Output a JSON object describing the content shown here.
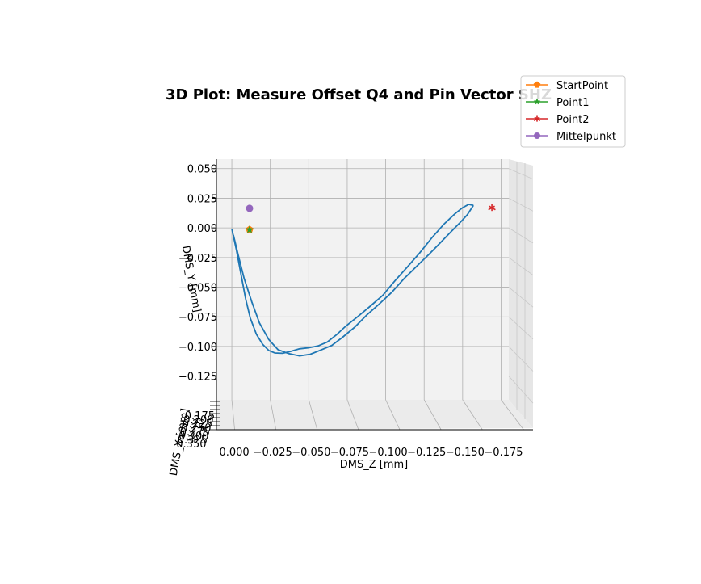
{
  "chart_data": {
    "type": "line",
    "title": "3D Plot: Measure Offset Q4 and Pin Vector SHZ",
    "xlabel": "DMS_Z [mm]",
    "ylabel": "DMS_Y [mm]",
    "zlabel": "DMS_X [mm]",
    "xlim": [
      0.01,
      -0.18
    ],
    "ylim": [
      -0.145,
      0.058
    ],
    "x_ticks": [
      "0.000",
      "−0.025",
      "−0.050",
      "−0.075",
      "−0.100",
      "−0.125",
      "−0.150",
      "−0.175"
    ],
    "x_tick_values": [
      0,
      -0.025,
      -0.05,
      -0.075,
      -0.1,
      -0.125,
      -0.15,
      -0.175
    ],
    "y_ticks": [
      "0.050",
      "0.025",
      "0.000",
      "−0.025",
      "−0.050",
      "−0.075",
      "−0.100",
      "−0.125"
    ],
    "y_tick_values": [
      0.05,
      0.025,
      0,
      -0.025,
      -0.05,
      -0.075,
      -0.1,
      -0.125
    ],
    "z_ticks": [
      "0.175",
      "0.200",
      "0.225",
      "0.250",
      "0.275",
      "0.300",
      "0.325",
      "0.350"
    ],
    "grid": true,
    "legend_position": "top-right",
    "series": [
      {
        "name": "",
        "color": "#1f77b4",
        "x": [
          0,
          -0.003,
          -0.006,
          -0.009,
          -0.012,
          -0.016,
          -0.02,
          -0.024,
          -0.028,
          -0.033,
          -0.038,
          -0.044,
          -0.05,
          -0.056,
          -0.062,
          -0.068,
          -0.074,
          -0.082,
          -0.09,
          -0.098,
          -0.106,
          -0.114,
          -0.122,
          -0.13,
          -0.138,
          -0.145,
          -0.15,
          -0.154,
          -0.157
        ],
        "y": [
          -0.001,
          -0.018,
          -0.038,
          -0.058,
          -0.074,
          -0.088,
          -0.097,
          -0.103,
          -0.106,
          -0.107,
          -0.106,
          -0.104,
          -0.103,
          -0.101,
          -0.097,
          -0.09,
          -0.082,
          -0.073,
          -0.064,
          -0.055,
          -0.043,
          -0.032,
          -0.021,
          -0.009,
          0.002,
          0.01,
          0.015,
          0.018,
          0.019
        ]
      },
      {
        "name": "",
        "color": "#1f77b4",
        "x": [
          -0.157,
          -0.153,
          -0.148,
          -0.142,
          -0.135,
          -0.128,
          -0.12,
          -0.112,
          -0.104,
          -0.096,
          -0.088,
          -0.08,
          -0.072,
          -0.065,
          -0.058,
          -0.051,
          -0.044,
          -0.037,
          -0.03,
          -0.024,
          -0.018,
          -0.013,
          -0.008,
          -0.004,
          -0.001
        ],
        "y": [
          0.019,
          0.013,
          0.006,
          -0.002,
          -0.012,
          -0.022,
          -0.033,
          -0.044,
          -0.056,
          -0.066,
          -0.075,
          -0.085,
          -0.093,
          -0.099,
          -0.102,
          -0.105,
          -0.106,
          -0.104,
          -0.101,
          -0.093,
          -0.08,
          -0.063,
          -0.044,
          -0.024,
          -0.006
        ]
      }
    ],
    "markers": [
      {
        "name": "StartPoint",
        "color": "#ff7f0e",
        "marker": "pentagon",
        "x": -0.0005,
        "y": -0.0015
      },
      {
        "name": "Point1",
        "color": "#2ca02c",
        "marker": "star",
        "x": -0.0005,
        "y": -0.0015
      },
      {
        "name": "Point2",
        "color": "#d62728",
        "marker": "tri",
        "x": -0.158,
        "y": 0.017
      },
      {
        "name": "Mittelpunkt",
        "color": "#9467bd",
        "marker": "circle",
        "x": -0.0005,
        "y": 0.0165
      }
    ]
  }
}
